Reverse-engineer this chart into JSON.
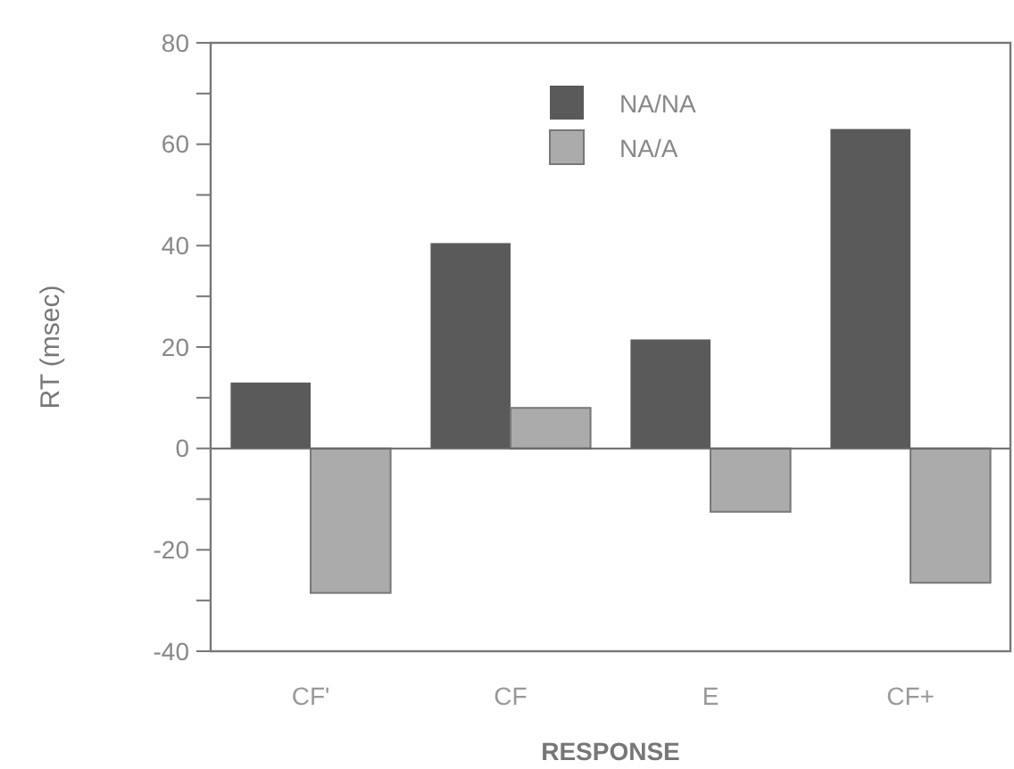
{
  "chart_data": {
    "type": "bar",
    "xlabel": "RESPONSE",
    "ylabel": "RT (msec)",
    "categories": [
      "CF'",
      "CF",
      "E",
      "CF+"
    ],
    "series": [
      {
        "name": "NA/NA",
        "color": "#5a5a5a",
        "values": [
          13,
          40.5,
          21.5,
          63
        ]
      },
      {
        "name": "NA/A",
        "color": "#ababab",
        "values": [
          -28.5,
          8,
          -12.5,
          -26.5
        ]
      }
    ],
    "ylim": [
      -40,
      80
    ],
    "yticks": [
      {
        "value": -40,
        "label": "-40"
      },
      {
        "value": -30,
        "label": null
      },
      {
        "value": -20,
        "label": "-20"
      },
      {
        "value": -10,
        "label": null
      },
      0,
      {
        "value": 10,
        "label": null
      },
      20,
      {
        "value": 30,
        "label": null
      },
      40,
      {
        "value": 50,
        "label": null
      },
      60,
      {
        "value": 70,
        "label": null
      },
      80
    ],
    "legend": "top right"
  }
}
